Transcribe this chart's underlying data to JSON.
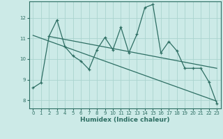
{
  "xlabel": "Humidex (Indice chaleur)",
  "xlim": [
    -0.5,
    23.5
  ],
  "ylim": [
    7.6,
    12.8
  ],
  "yticks": [
    8,
    9,
    10,
    11,
    12
  ],
  "xticks": [
    0,
    1,
    2,
    3,
    4,
    5,
    6,
    7,
    8,
    9,
    10,
    11,
    12,
    13,
    14,
    15,
    16,
    17,
    18,
    19,
    20,
    21,
    22,
    23
  ],
  "background_color": "#cceae7",
  "grid_color": "#aad4ce",
  "line_color": "#2d6e63",
  "line1_x": [
    0,
    1,
    2,
    3,
    4,
    5,
    6,
    7,
    8,
    9,
    10,
    11,
    12,
    13,
    14,
    15,
    16,
    17,
    18,
    19,
    20,
    21,
    22,
    23
  ],
  "line1_y": [
    8.6,
    8.85,
    11.1,
    11.9,
    10.6,
    10.15,
    9.9,
    9.5,
    10.45,
    11.05,
    10.45,
    11.55,
    10.3,
    11.2,
    12.5,
    12.65,
    10.3,
    10.85,
    10.4,
    9.55,
    9.55,
    9.55,
    8.9,
    7.85
  ],
  "line2_x": [
    0,
    23
  ],
  "line2_y": [
    11.15,
    7.95
  ],
  "line3_x": [
    2,
    23
  ],
  "line3_y": [
    11.1,
    9.55
  ]
}
